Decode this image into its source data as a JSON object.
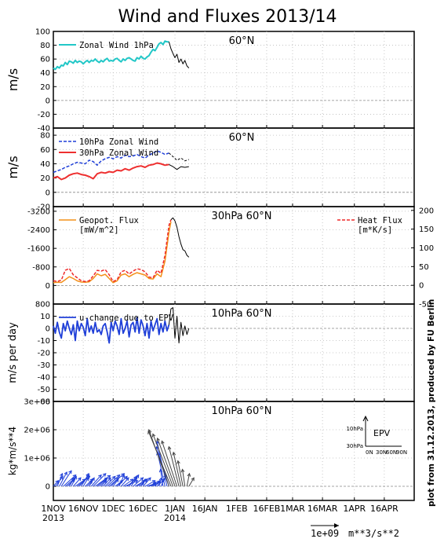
{
  "title": "Wind and Fluxes 2013/14",
  "side_note": "plot from 31.12.2013, produced by FU Berlin",
  "x_ticks": [
    {
      "label": "1NOV",
      "sub": "2013",
      "day": 0
    },
    {
      "label": "16NOV",
      "sub": "",
      "day": 15
    },
    {
      "label": "1DEC",
      "sub": "",
      "day": 30
    },
    {
      "label": "16DEC",
      "sub": "",
      "day": 45
    },
    {
      "label": "1JAN",
      "sub": "2014",
      "day": 61
    },
    {
      "label": "16JAN",
      "sub": "",
      "day": 76
    },
    {
      "label": "1FEB",
      "sub": "",
      "day": 92
    },
    {
      "label": "16FEB",
      "sub": "",
      "day": 107
    },
    {
      "label": "1MAR",
      "sub": "",
      "day": 120
    },
    {
      "label": "16MAR",
      "sub": "",
      "day": 135
    },
    {
      "label": "1APR",
      "sub": "",
      "day": 151
    },
    {
      "label": "16APR",
      "sub": "",
      "day": 166
    }
  ],
  "x_range": [
    0,
    181
  ],
  "vector_scale": {
    "value": "1e+09",
    "unit": "m**3/s**2"
  },
  "chart_data": [
    {
      "type": "line",
      "panel": "zonal-wind-1hpa",
      "title": "60°N",
      "ylabel": "m/s",
      "ylim": [
        -40,
        100
      ],
      "yticks": [
        -40,
        -20,
        0,
        20,
        40,
        60,
        80,
        100
      ],
      "legend": "top-left",
      "series": [
        {
          "name": "Zonal Wind 1hPa",
          "color": "#22c7c7",
          "width": 2,
          "x": [
            0,
            1,
            2,
            3,
            4,
            5,
            6,
            7,
            8,
            9,
            10,
            11,
            12,
            13,
            14,
            15,
            16,
            17,
            18,
            19,
            20,
            21,
            22,
            23,
            24,
            25,
            26,
            27,
            28,
            29,
            30,
            31,
            32,
            33,
            34,
            35,
            36,
            37,
            38,
            39,
            40,
            41,
            42,
            43,
            44,
            45,
            46,
            47,
            48,
            49,
            50,
            51,
            52,
            53,
            54,
            55,
            56,
            57,
            58
          ],
          "y": [
            47,
            45,
            49,
            47,
            51,
            50,
            55,
            52,
            57,
            56,
            54,
            58,
            55,
            57,
            56,
            53,
            56,
            58,
            55,
            58,
            57,
            60,
            57,
            55,
            58,
            56,
            59,
            61,
            57,
            58,
            57,
            60,
            61,
            58,
            56,
            60,
            58,
            61,
            62,
            60,
            58,
            57,
            62,
            60,
            64,
            61,
            60,
            63,
            65,
            70,
            74,
            72,
            77,
            82,
            84,
            81,
            86,
            85,
            85
          ]
        },
        {
          "name": "",
          "color": "#000000",
          "width": 1,
          "x": [
            58,
            59,
            60,
            61,
            62,
            63,
            64,
            65,
            66,
            67,
            68
          ],
          "y": [
            85,
            75,
            68,
            62,
            67,
            55,
            60,
            53,
            58,
            50,
            47
          ]
        }
      ]
    },
    {
      "type": "line",
      "panel": "zonal-wind-10-30hpa",
      "title": "60°N",
      "ylabel": "m/s",
      "ylim": [
        -20,
        90
      ],
      "yticks": [
        -20,
        0,
        20,
        40,
        60,
        80
      ],
      "legend": "top-left",
      "series": [
        {
          "name": "10hPa Zonal Wind",
          "color": "#1f3fd8",
          "width": 1.5,
          "dash": "4,2",
          "x": [
            0,
            2,
            4,
            6,
            8,
            10,
            12,
            14,
            16,
            18,
            20,
            22,
            24,
            26,
            28,
            30,
            32,
            34,
            36,
            38,
            40,
            42,
            44,
            46,
            48,
            50,
            52,
            54,
            56,
            58
          ],
          "y": [
            28,
            30,
            32,
            35,
            37,
            40,
            42,
            41,
            40,
            45,
            43,
            38,
            44,
            47,
            49,
            47,
            50,
            48,
            52,
            50,
            51,
            53,
            50,
            48,
            52,
            55,
            58,
            56,
            53,
            55
          ]
        },
        {
          "name": "30hPa Zonal Wind",
          "color": "#ee3030",
          "width": 2,
          "x": [
            0,
            2,
            4,
            6,
            8,
            10,
            12,
            14,
            16,
            18,
            20,
            22,
            24,
            26,
            28,
            30,
            32,
            34,
            36,
            38,
            40,
            42,
            44,
            46,
            48,
            50,
            52,
            54,
            56,
            58
          ],
          "y": [
            20,
            22,
            18,
            20,
            24,
            26,
            27,
            25,
            24,
            22,
            19,
            26,
            28,
            27,
            29,
            28,
            31,
            30,
            33,
            31,
            34,
            36,
            37,
            35,
            38,
            39,
            41,
            40,
            38,
            39
          ]
        },
        {
          "name": "",
          "color": "#000000",
          "width": 1,
          "dash": "3,2",
          "x": [
            58,
            60,
            62,
            64,
            66,
            68
          ],
          "y": [
            55,
            50,
            45,
            48,
            44,
            46
          ]
        },
        {
          "name": "",
          "color": "#000000",
          "width": 1,
          "x": [
            58,
            60,
            62,
            64,
            66,
            68
          ],
          "y": [
            39,
            36,
            32,
            36,
            35,
            36
          ]
        }
      ]
    },
    {
      "type": "line",
      "panel": "heat-flux-30hpa",
      "title": "30hPa 60°N",
      "ylim": [
        800,
        -3400
      ],
      "yticks": [
        800,
        0,
        -800,
        -1600,
        -2400,
        -3200
      ],
      "y2lim": [
        -50,
        210
      ],
      "y2ticks": [
        -50,
        0,
        50,
        100,
        150,
        200
      ],
      "legend": "top-left",
      "series": [
        {
          "name": "Geopot. Flux",
          "unit": "[mW/m^2]",
          "color": "#f39019",
          "width": 1.5,
          "axis": "y",
          "x": [
            0,
            2,
            4,
            6,
            8,
            10,
            12,
            14,
            16,
            18,
            20,
            22,
            24,
            26,
            28,
            30,
            32,
            34,
            36,
            38,
            40,
            42,
            44,
            46,
            48,
            50,
            52,
            54,
            56,
            58,
            59
          ],
          "y": [
            -120,
            -140,
            -130,
            -250,
            -380,
            -300,
            -200,
            -150,
            -140,
            -160,
            -300,
            -500,
            -420,
            -480,
            -300,
            -120,
            -200,
            -450,
            -500,
            -380,
            -480,
            -550,
            -500,
            -450,
            -300,
            -280,
            -500,
            -380,
            -1050,
            -2300,
            -2750
          ]
        },
        {
          "name": "Heat Flux",
          "unit": "[m*K/s]",
          "color": "#ee2a2a",
          "width": 1.5,
          "axis": "y2",
          "dash": "4,2",
          "x": [
            0,
            2,
            4,
            6,
            8,
            10,
            12,
            14,
            16,
            18,
            20,
            22,
            24,
            26,
            28,
            30,
            32,
            34,
            36,
            38,
            40,
            42,
            44,
            46,
            48,
            50,
            52,
            54,
            56,
            58,
            59
          ],
          "y": [
            12,
            10,
            14,
            40,
            45,
            28,
            20,
            12,
            10,
            12,
            25,
            40,
            38,
            42,
            28,
            10,
            15,
            36,
            40,
            30,
            38,
            44,
            42,
            36,
            22,
            20,
            40,
            32,
            80,
            160,
            175
          ]
        },
        {
          "name": "",
          "color": "#000000",
          "width": 1,
          "axis": "y2",
          "x": [
            59,
            60,
            61,
            62,
            63,
            64,
            65,
            66,
            67,
            68
          ],
          "y": [
            175,
            180,
            172,
            155,
            130,
            110,
            95,
            92,
            80,
            75
          ]
        }
      ]
    },
    {
      "type": "line",
      "panel": "u-change-epv",
      "title": "10hPa 60°N",
      "ylabel": "m/s per day",
      "ylim": [
        -60,
        20
      ],
      "yticks": [
        -60,
        -50,
        -40,
        -30,
        -20,
        -10,
        0,
        10
      ],
      "legend": "top-left",
      "series": [
        {
          "name": "u-change due to EPV",
          "color": "#1f3fd8",
          "width": 1.8,
          "x": [
            0,
            1,
            2,
            3,
            4,
            5,
            6,
            7,
            8,
            9,
            10,
            11,
            12,
            13,
            14,
            15,
            16,
            17,
            18,
            19,
            20,
            21,
            22,
            23,
            24,
            25,
            26,
            27,
            28,
            29,
            30,
            31,
            32,
            33,
            34,
            35,
            36,
            37,
            38,
            39,
            40,
            41,
            42,
            43,
            44,
            45,
            46,
            47,
            48,
            49,
            50,
            51,
            52,
            53,
            54,
            55,
            56,
            57,
            58
          ],
          "y": [
            2,
            -4,
            5,
            -3,
            -8,
            4,
            -2,
            6,
            0,
            -5,
            3,
            -10,
            6,
            -2,
            4,
            1,
            -6,
            8,
            -3,
            2,
            -4,
            5,
            -3,
            -1,
            -5,
            2,
            4,
            -3,
            -12,
            5,
            -2,
            6,
            2,
            -5,
            8,
            -4,
            0,
            6,
            -7,
            3,
            5,
            -3,
            9,
            -4,
            7,
            2,
            -6,
            4,
            -8,
            6,
            -2,
            3,
            8,
            -5,
            4,
            -3,
            6,
            -2,
            3
          ]
        },
        {
          "name": "",
          "color": "#000000",
          "width": 1,
          "x": [
            58,
            59,
            60,
            61,
            62,
            63,
            64,
            65,
            66,
            67,
            68
          ],
          "y": [
            3,
            16,
            17,
            -8,
            10,
            -12,
            5,
            -6,
            2,
            -5,
            0
          ]
        }
      ]
    },
    {
      "type": "vector",
      "panel": "epv-vectors",
      "title": "10hPa 60°N",
      "ylabel": "kg*m/s**4",
      "ylim": [
        -500000,
        3000000
      ],
      "yticks": [
        0,
        1000000,
        2000000,
        3000000
      ],
      "ytick_labels": [
        "0",
        "1e+06",
        "2e+06",
        "3e+06"
      ],
      "legend_box": {
        "label": "EPV",
        "y_labels": [
          "10hPa",
          "30hPa"
        ],
        "x_labels": [
          "0N",
          "30N",
          "60N",
          "90N"
        ]
      },
      "series": [
        {
          "name": "",
          "color": "#1f3fd8",
          "origin_y": 0,
          "x": [
            0,
            1,
            2,
            3,
            4,
            5,
            6,
            7,
            8,
            9,
            10,
            11,
            12,
            13,
            14,
            15,
            16,
            17,
            18,
            19,
            20,
            21,
            22,
            23,
            24,
            25,
            26,
            27,
            28,
            29,
            30,
            31,
            32,
            33,
            34,
            35,
            36,
            37,
            38,
            39,
            40,
            41,
            42,
            43,
            44,
            45,
            46,
            47,
            48,
            49,
            50,
            51,
            52,
            53,
            54,
            55,
            56,
            57,
            58
          ],
          "u": [
            2,
            3,
            2,
            3,
            4,
            5,
            4,
            3,
            2,
            2,
            3,
            4,
            5,
            4,
            3,
            2,
            3,
            2,
            2,
            4,
            5,
            6,
            4,
            3,
            2,
            3,
            4,
            5,
            6,
            3,
            2,
            3,
            4,
            2,
            3,
            4,
            5,
            4,
            3,
            3,
            4,
            5,
            3,
            2,
            2,
            3,
            4,
            5,
            3,
            2,
            1,
            2,
            3,
            1,
            2,
            -1,
            -3,
            -4,
            -5
          ],
          "v": [
            200000,
            350000,
            450000,
            500000,
            550000,
            400000,
            300000,
            250000,
            300000,
            350000,
            300000,
            250000,
            350000,
            400000,
            450000,
            300000,
            250000,
            200000,
            300000,
            400000,
            450000,
            380000,
            300000,
            250000,
            200000,
            300000,
            350000,
            400000,
            450000,
            300000,
            250000,
            200000,
            350000,
            400000,
            300000,
            250000,
            200000,
            300000,
            350000,
            400000,
            300000,
            250000,
            200000,
            150000,
            250000,
            300000,
            200000,
            150000,
            120000,
            100000,
            150000,
            200000,
            250000,
            300000,
            400000,
            600000,
            1200000,
            1600000,
            1400000
          ]
        },
        {
          "name": "",
          "color": "#444444",
          "origin_y": 0,
          "x": [
            58,
            59,
            60,
            61,
            62,
            63,
            64,
            65,
            66,
            67,
            68
          ],
          "u": [
            -8,
            -9,
            -8,
            -7,
            -6,
            -4,
            -3,
            -2,
            -1,
            1,
            2
          ],
          "v": [
            2000000,
            1950000,
            1850000,
            1700000,
            1600000,
            1400000,
            1200000,
            900000,
            600000,
            450000,
            300000
          ]
        }
      ]
    }
  ]
}
